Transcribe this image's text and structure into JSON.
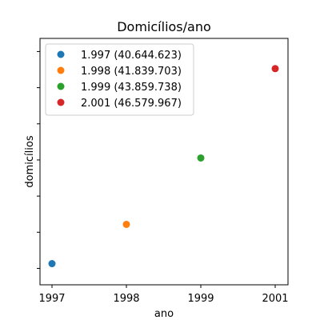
{
  "chart_data": {
    "type": "scatter",
    "title": "Domicílios/ano",
    "xlabel": "ano",
    "ylabel": "domicílios",
    "x_ticks": [
      "1997",
      "1998",
      "1999",
      "2001"
    ],
    "ylim": [
      40000000,
      47500000
    ],
    "y_tick_values": [
      40500000,
      41600000,
      42700000,
      43800000,
      44900000,
      46000000,
      47100000
    ],
    "grid": false,
    "legend_position": "top-left",
    "series": [
      {
        "name": "1.997 (40.644.623)",
        "x": "1997",
        "y": 40644623,
        "color": "#1f77b4"
      },
      {
        "name": "1.998 (41.839.703)",
        "x": "1998",
        "y": 41839703,
        "color": "#ff7f0e"
      },
      {
        "name": "1.999 (43.859.738)",
        "x": "1999",
        "y": 43859738,
        "color": "#2ca02c"
      },
      {
        "name": "2.001 (46.579.967)",
        "x": "2001",
        "y": 46579967,
        "color": "#d62728"
      }
    ]
  }
}
